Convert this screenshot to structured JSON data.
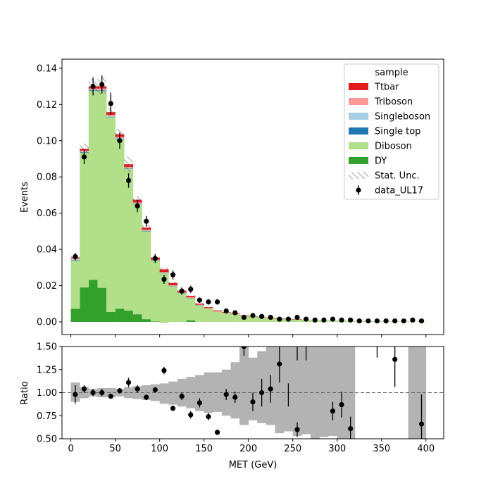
{
  "chart_data": [
    {
      "type": "bar",
      "subtype": "stacked-histogram-with-data-points",
      "xlabel": "",
      "ylabel": "Events",
      "xlim": [
        -10,
        420
      ],
      "ylim": [
        -0.007,
        0.145
      ],
      "yticks": [
        0.0,
        0.02,
        0.04,
        0.06,
        0.08,
        0.1,
        0.12,
        0.14
      ],
      "ytick_labels": [
        "0.00",
        "0.02",
        "0.04",
        "0.06",
        "0.08",
        "0.10",
        "0.12",
        "0.14"
      ],
      "xticks": [
        0,
        50,
        100,
        150,
        200,
        250,
        300,
        350,
        400
      ],
      "bin_edges": [
        0,
        10,
        20,
        30,
        40,
        50,
        60,
        70,
        80,
        90,
        100,
        110,
        120,
        130,
        140,
        150,
        160,
        170,
        180,
        190,
        200,
        210,
        220,
        230,
        240,
        250,
        260,
        270,
        280,
        290,
        300,
        310,
        320,
        330,
        340,
        350,
        360,
        370,
        380,
        390,
        400
      ],
      "legend": {
        "title": "sample",
        "placement": "top-right",
        "entries": [
          "Ttbar",
          "Triboson",
          "Singleboson",
          "Single top",
          "Diboson",
          "DY",
          "Stat. Unc.",
          "data_UL17"
        ]
      },
      "series": [
        {
          "name": "DY",
          "color": "#33a02c",
          "values": [
            0.0072,
            0.019,
            0.0232,
            0.0188,
            0.0055,
            0.0072,
            0.0062,
            0.0042,
            0.0015,
            0.0002,
            -0.0005,
            0.0,
            0.0,
            0.0008,
            0.0,
            0.0,
            0.0,
            0.0,
            0.0,
            0.0,
            0.0,
            0.0,
            0.0,
            0.0,
            0.0,
            0.0,
            0.0,
            0.0,
            0.0,
            0.0,
            0.0,
            0.0,
            0.0,
            0.0,
            0.0,
            0.0,
            0.0,
            0.0,
            0.0,
            0.0
          ]
        },
        {
          "name": "Diboson",
          "color": "#b2df8a",
          "values": [
            0.0268,
            0.0745,
            0.1043,
            0.1087,
            0.1075,
            0.0938,
            0.0783,
            0.0608,
            0.0485,
            0.0335,
            0.0275,
            0.0198,
            0.0158,
            0.0123,
            0.0092,
            0.0075,
            0.0058,
            0.005,
            0.0042,
            0.0035,
            0.003,
            0.0026,
            0.0022,
            0.0019,
            0.0016,
            0.0014,
            0.0012,
            0.001,
            0.0009,
            0.0008,
            0.0007,
            0.0006,
            0.0005,
            0.0004,
            0.0004,
            0.0003,
            0.0003,
            0.0002,
            0.0002,
            0.0002
          ]
        },
        {
          "name": "Single top",
          "color": "#1f78b4",
          "values": [
            0.0002,
            0.0002,
            0.0002,
            0.0002,
            0.0002,
            0.0002,
            0.0002,
            0.0002,
            0.0002,
            0.0001,
            0.0001,
            0.0001,
            0.0001,
            0.0001,
            0.0001,
            0.0,
            0.0,
            0.0,
            0.0,
            0.0,
            0.0,
            0.0,
            0.0,
            0.0,
            0.0,
            0.0,
            0.0,
            0.0,
            0.0,
            0.0,
            0.0,
            0.0,
            0.0,
            0.0,
            0.0,
            0.0,
            0.0,
            0.0,
            0.0,
            0.0
          ]
        },
        {
          "name": "Singleboson",
          "color": "#a6cee3",
          "values": [
            0.0003,
            0.0003,
            0.0003,
            0.0003,
            0.0003,
            0.0003,
            0.0003,
            0.0002,
            0.0002,
            0.0002,
            0.0001,
            0.0001,
            0.0001,
            0.0001,
            0.0001,
            0.0,
            0.0,
            0.0,
            0.0,
            0.0,
            0.0,
            0.0,
            0.0,
            0.0,
            0.0,
            0.0,
            0.0,
            0.0,
            0.0,
            0.0,
            0.0,
            0.0,
            0.0,
            0.0,
            0.0,
            0.0,
            0.0,
            0.0,
            0.0,
            0.0
          ]
        },
        {
          "name": "Triboson",
          "color": "#fb9a99",
          "values": [
            0.0005,
            0.0005,
            0.0008,
            0.0008,
            0.0008,
            0.0006,
            0.0005,
            0.0005,
            0.0004,
            0.0003,
            0.0003,
            0.0002,
            0.0002,
            0.0002,
            0.0001,
            0.0001,
            0.0001,
            0.0001,
            0.0001,
            0.0,
            0.0,
            0.0,
            0.0,
            0.0,
            0.0,
            0.0,
            0.0,
            0.0,
            0.0,
            0.0,
            0.0,
            0.0,
            0.0,
            0.0,
            0.0,
            0.0,
            0.0,
            0.0,
            0.0,
            0.0
          ]
        },
        {
          "name": "Ttbar",
          "color": "#e31a1c",
          "values": [
            0.0005,
            0.001,
            0.0012,
            0.0012,
            0.0015,
            0.0015,
            0.0015,
            0.0015,
            0.0012,
            0.0012,
            0.0015,
            0.0013,
            0.001,
            0.0008,
            0.0006,
            0.0005,
            0.0004,
            0.0003,
            0.0003,
            0.0002,
            0.0002,
            0.0002,
            0.0001,
            0.0001,
            0.0001,
            0.0001,
            0.0,
            0.0,
            0.0,
            0.0,
            0.0,
            0.0,
            0.0,
            0.0,
            0.0,
            0.0,
            0.0,
            0.0,
            0.0,
            0.0
          ]
        }
      ],
      "stat_unc": [
        0.0022,
        0.003,
        0.004,
        0.0045,
        0.0022,
        0.0028,
        0.0042,
        0.002,
        0.0015,
        0.0012,
        0.001,
        0.0006,
        0.0005,
        0.0004,
        0.0003,
        0.0003,
        0.0002,
        0.0002,
        0.0002,
        0.0002,
        0.0001,
        0.0001,
        0.0001,
        0.0001,
        0.0001,
        0.0001,
        0.0001,
        0.0001,
        0.0,
        0.0,
        0.0,
        0.0,
        0.0,
        0.0,
        0.0,
        0.0,
        0.0,
        0.0,
        0.0,
        0.0
      ],
      "data": {
        "name": "data_UL17",
        "x": [
          5,
          15,
          25,
          35,
          45,
          55,
          65,
          75,
          85,
          95,
          105,
          115,
          125,
          135,
          145,
          155,
          165,
          175,
          185,
          195,
          205,
          215,
          225,
          235,
          245,
          255,
          265,
          275,
          285,
          295,
          305,
          315,
          325,
          335,
          345,
          355,
          365,
          375,
          385,
          395
        ],
        "y": [
          0.036,
          0.091,
          0.13,
          0.131,
          0.1205,
          0.1,
          0.078,
          0.064,
          0.0555,
          0.035,
          0.0235,
          0.026,
          0.017,
          0.018,
          0.012,
          0.011,
          0.011,
          0.006,
          0.005,
          0.0025,
          0.0035,
          0.003,
          0.0025,
          0.0015,
          0.0015,
          0.0025,
          0.0015,
          0.001,
          0.001,
          0.0015,
          0.001,
          0.001,
          0.0005,
          0.0005,
          0.0005,
          0.0005,
          0.0005,
          0.0005,
          0.001,
          0.0005
        ],
        "yerr": [
          0.002,
          0.004,
          0.005,
          0.005,
          0.006,
          0.0045,
          0.004,
          0.0035,
          0.003,
          0.0025,
          0.0025,
          0.0025,
          0.002,
          0.002,
          0.0015,
          0.0015,
          0.0015,
          0.001,
          0.001,
          0.001,
          0.001,
          0.001,
          0.001,
          0.0008,
          0.0008,
          0.0008,
          0.0008,
          0.0006,
          0.0006,
          0.0006,
          0.0006,
          0.0006,
          0.0005,
          0.0005,
          0.0005,
          0.0005,
          0.0005,
          0.0005,
          0.0005,
          0.0005
        ]
      }
    },
    {
      "type": "scatter",
      "subtype": "ratio-panel",
      "xlabel": "MET (GeV)",
      "ylabel": "Ratio",
      "xlim": [
        -10,
        420
      ],
      "ylim": [
        0.5,
        1.5
      ],
      "yticks": [
        0.5,
        0.75,
        1.0,
        1.25,
        1.5
      ],
      "ytick_labels": [
        "0.50",
        "0.75",
        "1.00",
        "1.25",
        "1.50"
      ],
      "xticks": [
        0,
        50,
        100,
        150,
        200,
        250,
        300,
        350,
        400
      ],
      "reference_line": 1.0,
      "unc_band": [
        [
          0.9,
          1.11
        ],
        [
          0.94,
          1.06
        ],
        [
          0.96,
          1.04
        ],
        [
          0.95,
          1.05
        ],
        [
          0.95,
          1.05
        ],
        [
          0.96,
          1.04
        ],
        [
          0.94,
          1.06
        ],
        [
          0.93,
          1.07
        ],
        [
          0.92,
          1.08
        ],
        [
          0.91,
          1.09
        ],
        [
          0.88,
          1.1
        ],
        [
          0.87,
          1.12
        ],
        [
          0.85,
          1.15
        ],
        [
          0.83,
          1.17
        ],
        [
          0.8,
          1.19
        ],
        [
          0.78,
          1.22
        ],
        [
          0.79,
          1.22
        ],
        [
          0.75,
          1.25
        ],
        [
          0.72,
          1.33
        ],
        [
          0.65,
          1.5
        ],
        [
          0.7,
          1.38
        ],
        [
          0.67,
          1.45
        ],
        [
          0.65,
          1.5
        ],
        [
          0.56,
          1.5
        ],
        [
          0.58,
          1.5
        ],
        [
          0.53,
          1.5
        ],
        [
          0.55,
          1.5
        ],
        [
          0.5,
          1.5
        ],
        [
          0.52,
          1.5
        ],
        [
          0.53,
          1.5
        ],
        [
          0.5,
          1.5
        ],
        [
          0.5,
          1.5
        ],
        null,
        null,
        null,
        null,
        null,
        null,
        [
          0.5,
          1.5
        ],
        [
          0.5,
          1.5
        ]
      ],
      "x": [
        5,
        15,
        25,
        35,
        45,
        55,
        65,
        75,
        85,
        95,
        105,
        115,
        125,
        135,
        145,
        155,
        165,
        175,
        185,
        195,
        205,
        215,
        225,
        235,
        255,
        295,
        305,
        315,
        365,
        395
      ],
      "y": [
        0.98,
        1.04,
        1.0,
        1.0,
        0.96,
        1.02,
        1.11,
        1.04,
        0.95,
        1.03,
        1.24,
        0.83,
        0.96,
        0.76,
        0.89,
        0.74,
        0.57,
        0.98,
        0.95,
        1.5,
        0.9,
        1.0,
        1.04,
        1.31,
        0.6,
        0.8,
        0.87,
        0.61,
        1.36,
        0.66
      ],
      "yerr": [
        0.1,
        0.04,
        0.04,
        0.04,
        0.02,
        0.03,
        0.05,
        0.04,
        0.03,
        0.03,
        0.04,
        0.03,
        0.04,
        0.04,
        0.05,
        0.04,
        0.03,
        0.06,
        0.06,
        0.1,
        0.1,
        0.15,
        0.15,
        0.2,
        0.08,
        0.1,
        0.14,
        0.13,
        0.3,
        0.32
      ],
      "extra_error_bars": [
        [
          255,
          1.35,
          1.5
        ],
        [
          345,
          1.38,
          1.5
        ],
        [
          265,
          1.35,
          1.5
        ],
        [
          245,
          0.85,
          1.1
        ]
      ]
    }
  ]
}
